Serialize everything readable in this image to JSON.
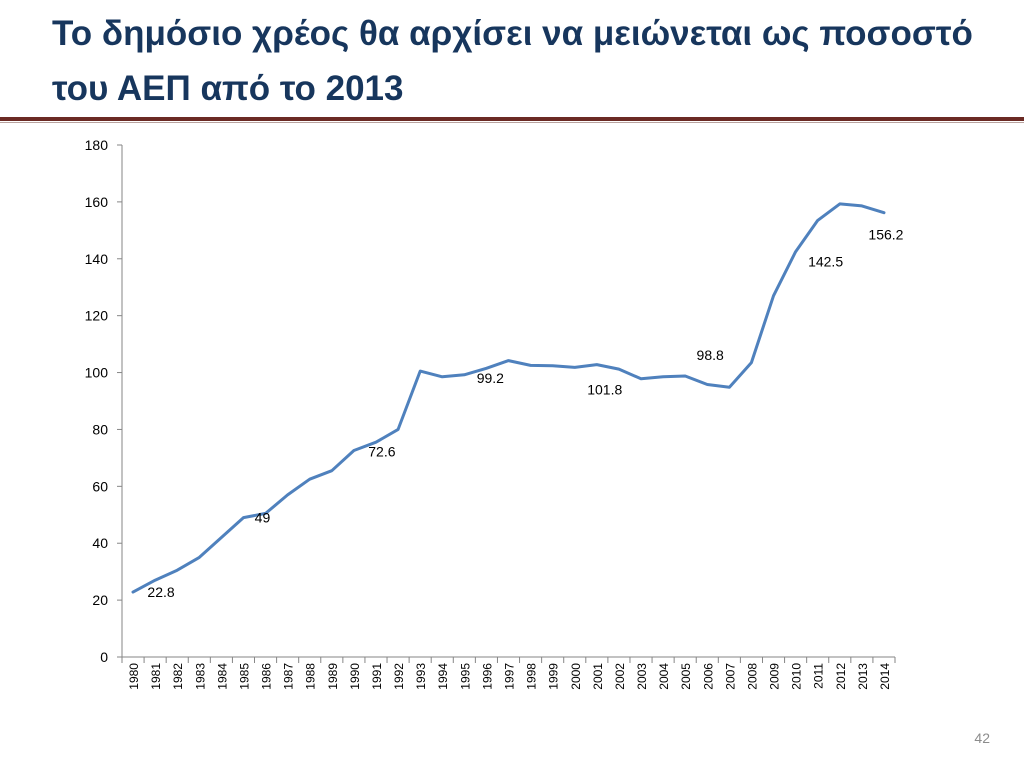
{
  "slide": {
    "title": "Το δημόσιο χρέος θα αρχίσει να μειώνεται ως ποσοστό του ΑΕΠ από το 2013",
    "page_number": "42",
    "title_color": "#17365d",
    "rule_color": "#6b2a24"
  },
  "chart_data": {
    "type": "line",
    "title": "",
    "xlabel": "",
    "ylabel": "",
    "ylim": [
      0,
      180
    ],
    "yticks": [
      0,
      20,
      40,
      60,
      80,
      100,
      120,
      140,
      160,
      180
    ],
    "grid": false,
    "legend": "none",
    "line_color": "#4f81bd",
    "x": [
      "1980",
      "1981",
      "1982",
      "1983",
      "1984",
      "1985",
      "1986",
      "1987",
      "1988",
      "1989",
      "1990",
      "1991",
      "1992",
      "1993",
      "1994",
      "1995",
      "1996",
      "1997",
      "1998",
      "1999",
      "2000",
      "2001",
      "2002",
      "2003",
      "2004",
      "2005",
      "2006",
      "2007",
      "2008",
      "2009",
      "2010",
      "2011",
      "2012",
      "2013",
      "2014"
    ],
    "series": [
      {
        "name": "",
        "values": [
          22.8,
          27,
          30.5,
          35,
          42,
          49,
          50.5,
          57,
          62.5,
          65.5,
          72.6,
          75.5,
          80,
          100.5,
          98.5,
          99.2,
          101.5,
          104.2,
          102.5,
          102.4,
          101.8,
          102.8,
          101.2,
          97.8,
          98.5,
          98.8,
          95.8,
          94.8,
          103.5,
          127,
          142.5,
          153.5,
          159.3,
          158.6,
          156.2
        ]
      }
    ],
    "data_labels": [
      {
        "x": "1980",
        "text": "22.8"
      },
      {
        "x": "1985",
        "text": "49"
      },
      {
        "x": "1990",
        "text": "72.6"
      },
      {
        "x": "1995",
        "text": "99.2"
      },
      {
        "x": "2000",
        "text": "101.8"
      },
      {
        "x": "2005",
        "text": "98.8"
      },
      {
        "x": "2010",
        "text": "142.5"
      },
      {
        "x": "2014",
        "text": "156.2"
      }
    ]
  }
}
